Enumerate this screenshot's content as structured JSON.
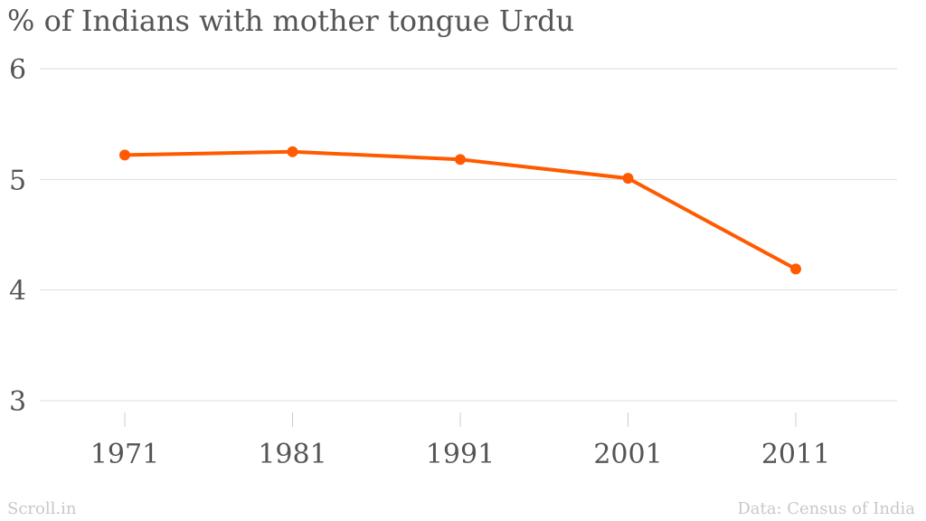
{
  "chart_data": {
    "type": "line",
    "title": "% of Indians with mother tongue Urdu",
    "categories": [
      "1971",
      "1981",
      "1991",
      "2001",
      "2011"
    ],
    "values": [
      5.22,
      5.25,
      5.18,
      5.01,
      4.19
    ],
    "ylim": [
      3,
      6
    ],
    "yticks": [
      "3",
      "4",
      "5",
      "6"
    ],
    "grid": true,
    "line_color": "#ff5a00",
    "source": "Data: Census of India",
    "credit": "Scroll.in"
  }
}
